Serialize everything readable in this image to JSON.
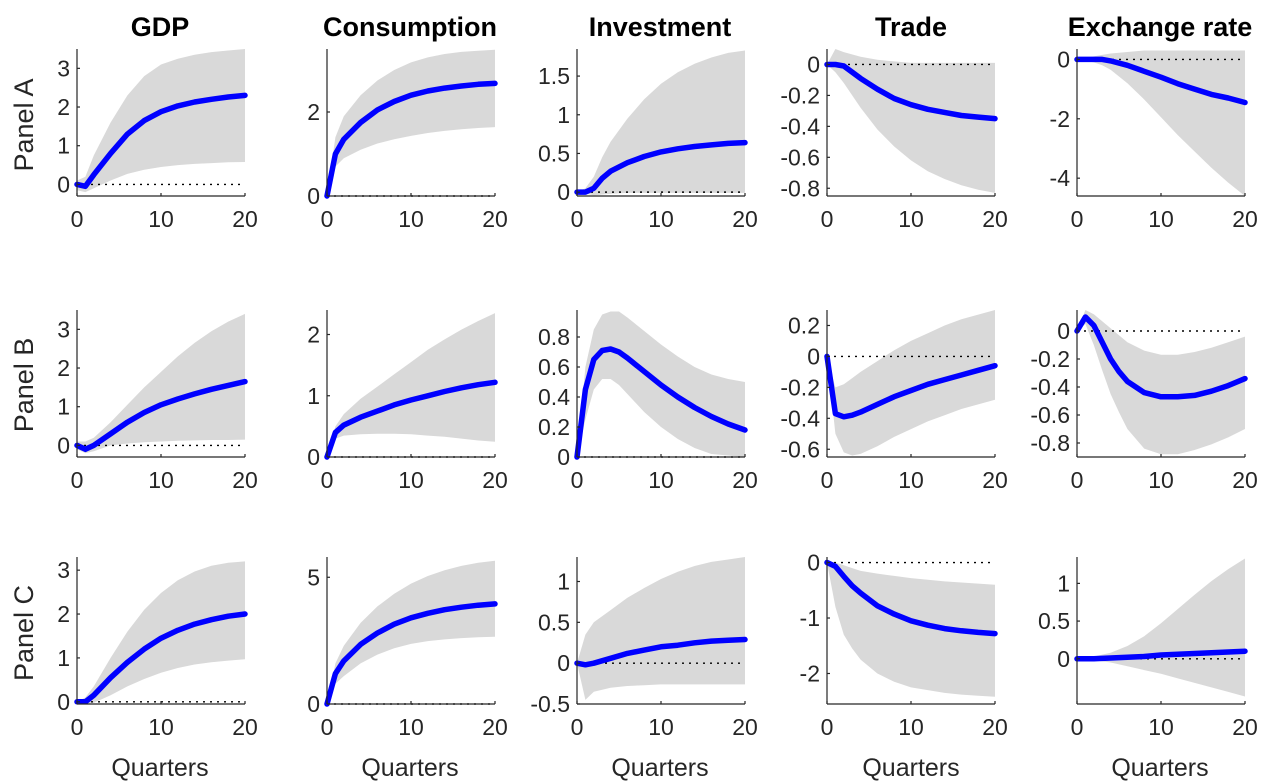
{
  "colors": {
    "band": "#d9d9d9",
    "line": "#0000ff",
    "zero_line": "#000000"
  },
  "columns": [
    "GDP",
    "Consumption",
    "Investment",
    "Trade",
    "Exchange rate"
  ],
  "rows": [
    "Panel A",
    "Panel B",
    "Panel C"
  ],
  "x_axis_label": "Quarters",
  "chart_data": [
    {
      "type": "line",
      "panel": "Panel A",
      "column": "GDP",
      "xlim": [
        0,
        20
      ],
      "ylim": [
        -0.3,
        3.5
      ],
      "xticks": [
        0,
        10,
        20
      ],
      "yticks": [
        0,
        1,
        2,
        3
      ],
      "ytick_labels": [
        "0",
        "1",
        "2",
        "3"
      ],
      "grid": false,
      "x": [
        0,
        1,
        2,
        4,
        6,
        8,
        10,
        12,
        14,
        16,
        18,
        20
      ],
      "median": [
        0,
        -0.05,
        0.25,
        0.8,
        1.3,
        1.65,
        1.88,
        2.03,
        2.13,
        2.2,
        2.26,
        2.3
      ],
      "lower": [
        -0.15,
        -0.2,
        -0.1,
        0.1,
        0.27,
        0.38,
        0.45,
        0.5,
        0.53,
        0.55,
        0.57,
        0.58
      ],
      "upper": [
        0.1,
        0.2,
        0.75,
        1.6,
        2.3,
        2.8,
        3.1,
        3.25,
        3.35,
        3.42,
        3.46,
        3.5
      ]
    },
    {
      "type": "line",
      "panel": "Panel A",
      "column": "Consumption",
      "xlim": [
        0,
        20
      ],
      "ylim": [
        0,
        3.5
      ],
      "xticks": [
        0,
        10,
        20
      ],
      "yticks": [
        0,
        2
      ],
      "ytick_labels": [
        "0",
        "2"
      ],
      "grid": false,
      "x": [
        0,
        1,
        2,
        4,
        6,
        8,
        10,
        12,
        14,
        16,
        18,
        20
      ],
      "median": [
        0,
        1.0,
        1.35,
        1.75,
        2.05,
        2.25,
        2.4,
        2.5,
        2.57,
        2.62,
        2.66,
        2.68
      ],
      "lower": [
        0,
        0.7,
        0.9,
        1.1,
        1.25,
        1.35,
        1.43,
        1.5,
        1.55,
        1.59,
        1.62,
        1.64
      ],
      "upper": [
        0,
        1.4,
        1.9,
        2.4,
        2.75,
        3.0,
        3.18,
        3.3,
        3.38,
        3.43,
        3.46,
        3.48
      ]
    },
    {
      "type": "line",
      "panel": "Panel A",
      "column": "Investment",
      "xlim": [
        0,
        20
      ],
      "ylim": [
        -0.05,
        1.85
      ],
      "xticks": [
        0,
        10,
        20
      ],
      "yticks": [
        0,
        0.5,
        1,
        1.5
      ],
      "ytick_labels": [
        "0",
        "0.5",
        "1",
        "1.5"
      ],
      "grid": false,
      "x": [
        0,
        1,
        2,
        3,
        4,
        6,
        8,
        10,
        12,
        14,
        16,
        18,
        20
      ],
      "median": [
        0,
        0,
        0.05,
        0.18,
        0.27,
        0.38,
        0.46,
        0.52,
        0.56,
        0.59,
        0.61,
        0.63,
        0.64
      ],
      "lower": [
        0,
        -0.02,
        -0.04,
        -0.03,
        -0.02,
        -0.01,
        -0.01,
        -0.01,
        -0.01,
        -0.01,
        -0.01,
        -0.01,
        -0.01
      ],
      "upper": [
        0,
        0.05,
        0.2,
        0.45,
        0.65,
        0.95,
        1.2,
        1.4,
        1.55,
        1.66,
        1.74,
        1.8,
        1.83
      ]
    },
    {
      "type": "line",
      "panel": "Panel A",
      "column": "Trade",
      "xlim": [
        0,
        20
      ],
      "ylim": [
        -0.85,
        0.1
      ],
      "xticks": [
        0,
        10,
        20
      ],
      "yticks": [
        0,
        -0.2,
        -0.4,
        -0.6,
        -0.8
      ],
      "ytick_labels": [
        "0",
        "-0.2",
        "-0.4",
        "-0.6",
        "-0.8"
      ],
      "grid": false,
      "x": [
        0,
        1,
        2,
        4,
        6,
        8,
        10,
        12,
        14,
        16,
        18,
        20
      ],
      "median": [
        0,
        0,
        -0.01,
        -0.09,
        -0.16,
        -0.22,
        -0.26,
        -0.29,
        -0.31,
        -0.33,
        -0.34,
        -0.35
      ],
      "lower": [
        0,
        -0.05,
        -0.12,
        -0.28,
        -0.42,
        -0.53,
        -0.62,
        -0.69,
        -0.74,
        -0.78,
        -0.81,
        -0.83
      ],
      "upper": [
        0,
        0.1,
        0.08,
        0.05,
        0.03,
        0.02,
        0.01,
        0.01,
        0.01,
        0.01,
        0.01,
        0.01
      ]
    },
    {
      "type": "line",
      "panel": "Panel A",
      "column": "Exchange rate",
      "xlim": [
        0,
        20
      ],
      "ylim": [
        -4.6,
        0.35
      ],
      "xticks": [
        0,
        10,
        20
      ],
      "yticks": [
        0,
        -2,
        -4
      ],
      "ytick_labels": [
        "0",
        "-2",
        "-4"
      ],
      "grid": false,
      "x": [
        0,
        1,
        2,
        3,
        4,
        6,
        8,
        10,
        12,
        14,
        16,
        18,
        20
      ],
      "median": [
        0,
        0,
        0,
        0,
        -0.05,
        -0.2,
        -0.4,
        -0.6,
        -0.82,
        -1.0,
        -1.18,
        -1.3,
        -1.45
      ],
      "lower": [
        0,
        -0.05,
        -0.1,
        -0.2,
        -0.35,
        -0.8,
        -1.35,
        -1.95,
        -2.55,
        -3.1,
        -3.65,
        -4.15,
        -4.6
      ],
      "upper": [
        0,
        0.05,
        0.1,
        0.15,
        0.2,
        0.25,
        0.3,
        0.3,
        0.3,
        0.3,
        0.3,
        0.3,
        0.3
      ]
    },
    {
      "type": "line",
      "panel": "Panel B",
      "column": "GDP",
      "xlim": [
        0,
        20
      ],
      "ylim": [
        -0.3,
        3.5
      ],
      "xticks": [
        0,
        10,
        20
      ],
      "yticks": [
        0,
        1,
        2,
        3
      ],
      "ytick_labels": [
        "0",
        "1",
        "2",
        "3"
      ],
      "grid": false,
      "x": [
        0,
        1,
        2,
        4,
        6,
        8,
        10,
        12,
        14,
        16,
        18,
        20
      ],
      "median": [
        0,
        -0.1,
        0,
        0.3,
        0.6,
        0.85,
        1.05,
        1.2,
        1.33,
        1.45,
        1.55,
        1.65
      ],
      "lower": [
        -0.1,
        -0.2,
        -0.15,
        0,
        0.05,
        0.08,
        0.1,
        0.12,
        0.13,
        0.14,
        0.14,
        0.15
      ],
      "upper": [
        0.1,
        0.1,
        0.2,
        0.6,
        1.05,
        1.5,
        1.9,
        2.3,
        2.65,
        2.95,
        3.2,
        3.4
      ]
    },
    {
      "type": "line",
      "panel": "Panel B",
      "column": "Consumption",
      "xlim": [
        0,
        20
      ],
      "ylim": [
        0,
        2.4
      ],
      "xticks": [
        0,
        10,
        20
      ],
      "yticks": [
        0,
        1,
        2
      ],
      "ytick_labels": [
        "0",
        "1",
        "2"
      ],
      "grid": false,
      "x": [
        0,
        1,
        2,
        4,
        6,
        8,
        10,
        12,
        14,
        16,
        18,
        20
      ],
      "median": [
        0,
        0.4,
        0.52,
        0.65,
        0.75,
        0.85,
        0.93,
        1.0,
        1.07,
        1.13,
        1.18,
        1.22
      ],
      "lower": [
        0,
        0.3,
        0.35,
        0.37,
        0.38,
        0.38,
        0.37,
        0.35,
        0.33,
        0.3,
        0.27,
        0.25
      ],
      "upper": [
        0,
        0.5,
        0.7,
        0.95,
        1.15,
        1.35,
        1.55,
        1.75,
        1.92,
        2.08,
        2.22,
        2.35
      ]
    },
    {
      "type": "line",
      "panel": "Panel B",
      "column": "Investment",
      "xlim": [
        0,
        20
      ],
      "ylim": [
        0,
        0.98
      ],
      "xticks": [
        0,
        10,
        20
      ],
      "yticks": [
        0,
        0.2,
        0.4,
        0.6,
        0.8
      ],
      "ytick_labels": [
        "0",
        "0.2",
        "0.4",
        "0.6",
        "0.8"
      ],
      "grid": false,
      "x": [
        0,
        1,
        2,
        3,
        4,
        5,
        6,
        8,
        10,
        12,
        14,
        16,
        18,
        20
      ],
      "median": [
        0,
        0.45,
        0.65,
        0.71,
        0.72,
        0.7,
        0.66,
        0.57,
        0.48,
        0.4,
        0.33,
        0.27,
        0.22,
        0.18
      ],
      "lower": [
        0,
        0.25,
        0.45,
        0.52,
        0.52,
        0.48,
        0.42,
        0.3,
        0.2,
        0.12,
        0.06,
        0.02,
        0.01,
        0
      ],
      "upper": [
        0,
        0.6,
        0.85,
        0.95,
        0.97,
        0.97,
        0.93,
        0.84,
        0.75,
        0.67,
        0.6,
        0.55,
        0.52,
        0.5
      ]
    },
    {
      "type": "line",
      "panel": "Panel B",
      "column": "Trade",
      "xlim": [
        0,
        20
      ],
      "ylim": [
        -0.65,
        0.3
      ],
      "xticks": [
        0,
        10,
        20
      ],
      "yticks": [
        0.2,
        0,
        -0.2,
        -0.4,
        -0.6
      ],
      "ytick_labels": [
        "0.2",
        "0",
        "-0.2",
        "-0.4",
        "-0.6"
      ],
      "grid": false,
      "x": [
        0,
        1,
        2,
        3,
        4,
        6,
        8,
        10,
        12,
        14,
        16,
        18,
        20
      ],
      "median": [
        0,
        -0.37,
        -0.39,
        -0.38,
        -0.36,
        -0.31,
        -0.26,
        -0.22,
        -0.18,
        -0.15,
        -0.12,
        -0.09,
        -0.06
      ],
      "lower": [
        0,
        -0.5,
        -0.62,
        -0.64,
        -0.63,
        -0.58,
        -0.52,
        -0.47,
        -0.42,
        -0.38,
        -0.34,
        -0.31,
        -0.28
      ],
      "upper": [
        0,
        -0.2,
        -0.18,
        -0.14,
        -0.1,
        -0.03,
        0.04,
        0.1,
        0.15,
        0.2,
        0.24,
        0.27,
        0.3
      ]
    },
    {
      "type": "line",
      "panel": "Panel B",
      "column": "Exchange rate",
      "xlim": [
        0,
        20
      ],
      "ylim": [
        -0.9,
        0.15
      ],
      "xticks": [
        0,
        10,
        20
      ],
      "yticks": [
        0,
        -0.2,
        -0.4,
        -0.6,
        -0.8
      ],
      "ytick_labels": [
        "0",
        "-0.2",
        "-0.4",
        "-0.6",
        "-0.8"
      ],
      "grid": false,
      "x": [
        0,
        1,
        2,
        3,
        4,
        5,
        6,
        8,
        10,
        12,
        14,
        16,
        18,
        20
      ],
      "median": [
        0,
        0.1,
        0.04,
        -0.08,
        -0.2,
        -0.29,
        -0.36,
        -0.44,
        -0.47,
        -0.47,
        -0.46,
        -0.43,
        -0.39,
        -0.34
      ],
      "lower": [
        0,
        0.05,
        -0.1,
        -0.28,
        -0.45,
        -0.58,
        -0.7,
        -0.84,
        -0.88,
        -0.88,
        -0.85,
        -0.81,
        -0.76,
        -0.7
      ],
      "upper": [
        0,
        0.15,
        0.12,
        0.07,
        0.02,
        -0.03,
        -0.08,
        -0.14,
        -0.17,
        -0.17,
        -0.15,
        -0.12,
        -0.08,
        -0.04
      ]
    },
    {
      "type": "line",
      "panel": "Panel C",
      "column": "GDP",
      "xlim": [
        0,
        20
      ],
      "ylim": [
        -0.05,
        3.3
      ],
      "xticks": [
        0,
        10,
        20
      ],
      "yticks": [
        0,
        1,
        2,
        3
      ],
      "ytick_labels": [
        "0",
        "1",
        "2",
        "3"
      ],
      "grid": false,
      "x": [
        0,
        1,
        2,
        4,
        6,
        8,
        10,
        12,
        14,
        16,
        18,
        20
      ],
      "median": [
        0,
        0,
        0.15,
        0.55,
        0.9,
        1.2,
        1.45,
        1.63,
        1.77,
        1.87,
        1.95,
        2.0
      ],
      "lower": [
        0,
        -0.05,
        -0.02,
        0.15,
        0.35,
        0.52,
        0.66,
        0.77,
        0.85,
        0.9,
        0.94,
        0.97
      ],
      "upper": [
        0,
        0.1,
        0.35,
        1.0,
        1.6,
        2.1,
        2.48,
        2.77,
        2.97,
        3.1,
        3.17,
        3.2
      ]
    },
    {
      "type": "line",
      "panel": "Panel C",
      "column": "Consumption",
      "xlim": [
        0,
        20
      ],
      "ylim": [
        0,
        5.8
      ],
      "xticks": [
        0,
        10,
        20
      ],
      "yticks": [
        0,
        5
      ],
      "ytick_labels": [
        "0",
        "5"
      ],
      "grid": false,
      "x": [
        0,
        1,
        2,
        4,
        6,
        8,
        10,
        12,
        14,
        16,
        18,
        20
      ],
      "median": [
        0,
        1.2,
        1.7,
        2.35,
        2.8,
        3.15,
        3.4,
        3.58,
        3.72,
        3.82,
        3.9,
        3.95
      ],
      "lower": [
        0,
        0.8,
        1.1,
        1.6,
        1.95,
        2.2,
        2.37,
        2.48,
        2.55,
        2.6,
        2.63,
        2.65
      ],
      "upper": [
        0,
        1.6,
        2.3,
        3.2,
        3.85,
        4.35,
        4.75,
        5.05,
        5.28,
        5.45,
        5.57,
        5.65
      ]
    },
    {
      "type": "line",
      "panel": "Panel C",
      "column": "Investment",
      "xlim": [
        0,
        20
      ],
      "ylim": [
        -0.5,
        1.3
      ],
      "xticks": [
        0,
        10,
        20
      ],
      "yticks": [
        -0.5,
        0,
        0.5,
        1
      ],
      "ytick_labels": [
        "-0.5",
        "0",
        "0.5",
        "1"
      ],
      "grid": false,
      "x": [
        0,
        1,
        2,
        4,
        6,
        8,
        10,
        12,
        14,
        16,
        18,
        20
      ],
      "median": [
        0,
        -0.02,
        0,
        0.06,
        0.12,
        0.16,
        0.2,
        0.22,
        0.25,
        0.27,
        0.28,
        0.29
      ],
      "lower": [
        0,
        -0.45,
        -0.35,
        -0.3,
        -0.28,
        -0.27,
        -0.26,
        -0.26,
        -0.26,
        -0.26,
        -0.26,
        -0.26
      ],
      "upper": [
        0,
        0.35,
        0.5,
        0.65,
        0.8,
        0.92,
        1.03,
        1.12,
        1.19,
        1.24,
        1.27,
        1.3
      ]
    },
    {
      "type": "line",
      "panel": "Panel C",
      "column": "Trade",
      "xlim": [
        0,
        20
      ],
      "ylim": [
        -2.55,
        0.1
      ],
      "xticks": [
        0,
        10,
        20
      ],
      "yticks": [
        0,
        -1,
        -2
      ],
      "ytick_labels": [
        "0",
        "-1",
        "-2"
      ],
      "grid": false,
      "x": [
        0,
        1,
        2,
        3,
        4,
        6,
        8,
        10,
        12,
        14,
        16,
        18,
        20
      ],
      "median": [
        0,
        -0.07,
        -0.25,
        -0.42,
        -0.55,
        -0.78,
        -0.93,
        -1.05,
        -1.13,
        -1.19,
        -1.23,
        -1.26,
        -1.28
      ],
      "lower": [
        0,
        -0.8,
        -1.3,
        -1.55,
        -1.75,
        -2.0,
        -2.15,
        -2.25,
        -2.3,
        -2.35,
        -2.38,
        -2.4,
        -2.42
      ],
      "upper": [
        0,
        0,
        -0.05,
        -0.1,
        -0.15,
        -0.2,
        -0.24,
        -0.28,
        -0.31,
        -0.34,
        -0.36,
        -0.38,
        -0.4
      ]
    },
    {
      "type": "line",
      "panel": "Panel C",
      "column": "Exchange rate",
      "xlim": [
        0,
        20
      ],
      "ylim": [
        -0.6,
        1.35
      ],
      "xticks": [
        0,
        10,
        20
      ],
      "yticks": [
        0,
        0.5,
        1
      ],
      "ytick_labels": [
        "0",
        "0.5",
        "1"
      ],
      "grid": false,
      "x": [
        0,
        1,
        2,
        4,
        6,
        8,
        10,
        12,
        14,
        16,
        18,
        20
      ],
      "median": [
        0,
        0,
        0,
        0.01,
        0.02,
        0.03,
        0.05,
        0.06,
        0.07,
        0.08,
        0.09,
        0.1
      ],
      "lower": [
        0,
        0,
        -0.02,
        -0.05,
        -0.1,
        -0.15,
        -0.2,
        -0.26,
        -0.32,
        -0.38,
        -0.44,
        -0.5
      ],
      "upper": [
        0,
        0.01,
        0.03,
        0.08,
        0.17,
        0.3,
        0.47,
        0.66,
        0.85,
        1.03,
        1.19,
        1.33
      ]
    }
  ]
}
